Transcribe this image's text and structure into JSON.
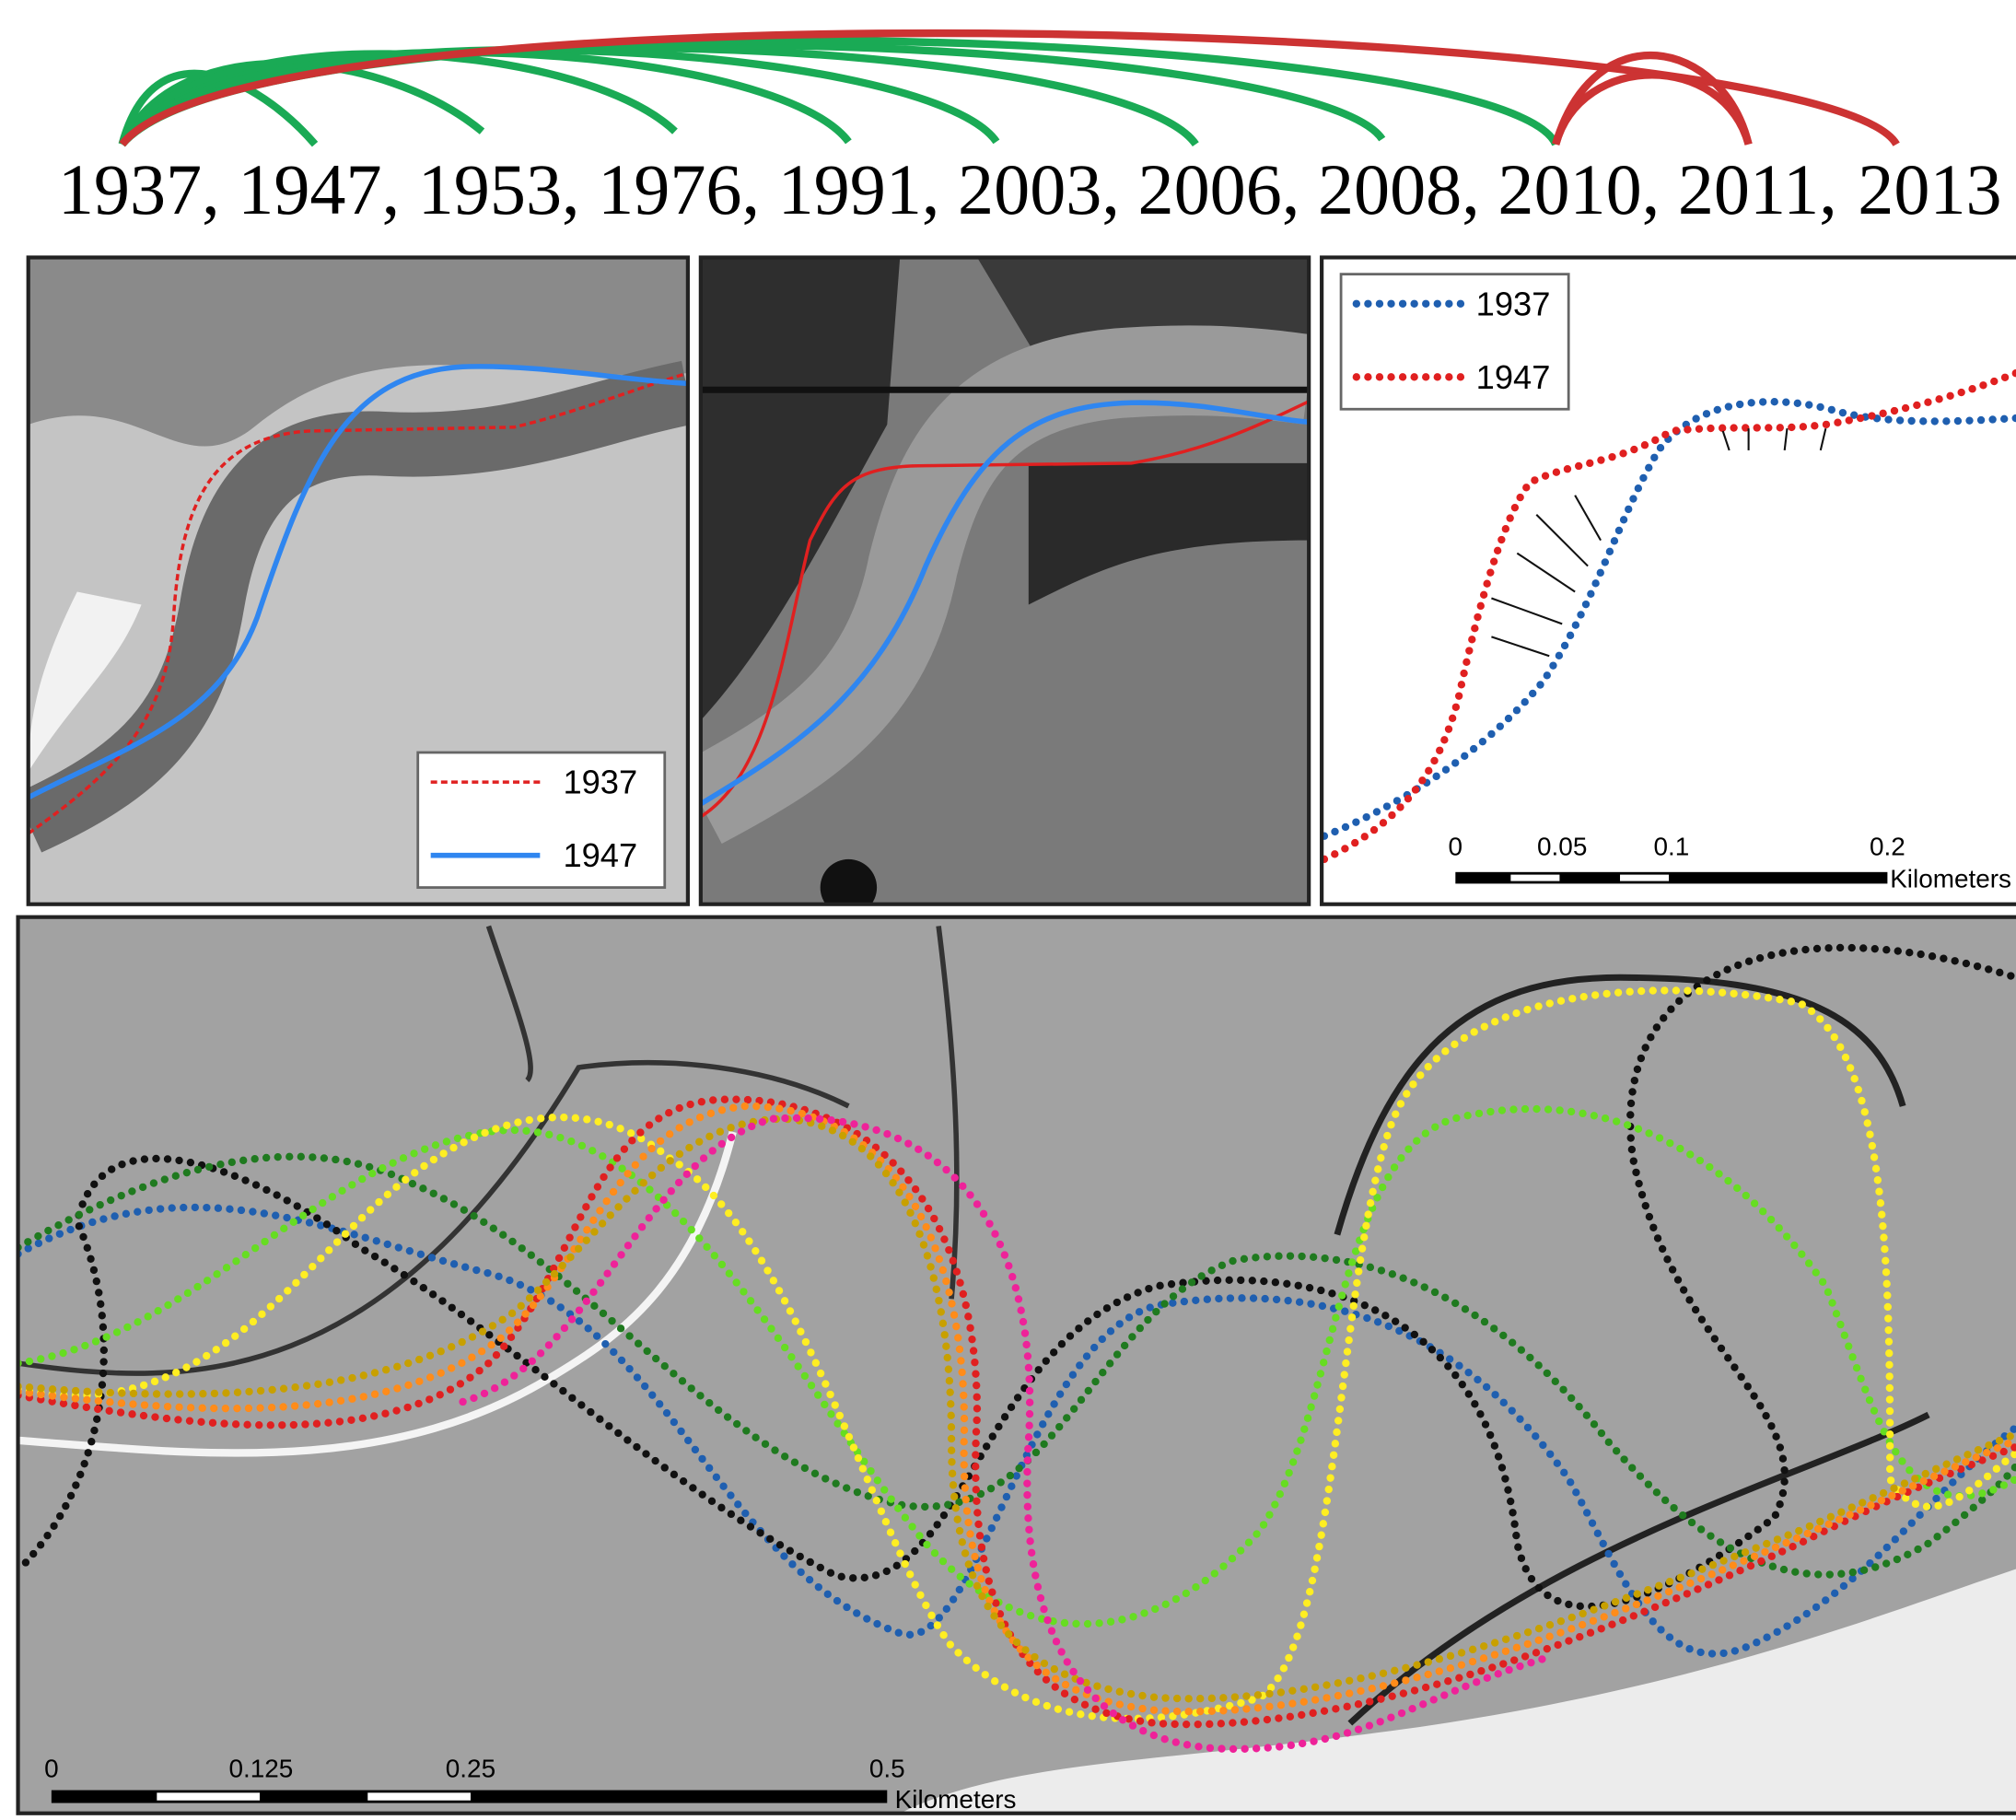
{
  "timeline": {
    "years": [
      "1937,",
      "1947,",
      "1953,",
      "1976,",
      "1991,",
      "2003,",
      "2006,",
      "2008,",
      "2010,",
      "2011,",
      "2013"
    ]
  },
  "photo_panel": {
    "legend": [
      "1937",
      "1947"
    ]
  },
  "centerline_panel": {
    "legend": [
      "1937",
      "1947"
    ],
    "scale_labels": [
      "0",
      "0.05",
      "0.1",
      "0.2"
    ],
    "scale_unit": "Kilometers"
  },
  "map_panel": {
    "scale_labels": [
      "0",
      "0.125",
      "0.25",
      "0.5"
    ],
    "scale_unit": "Kilometers"
  }
}
